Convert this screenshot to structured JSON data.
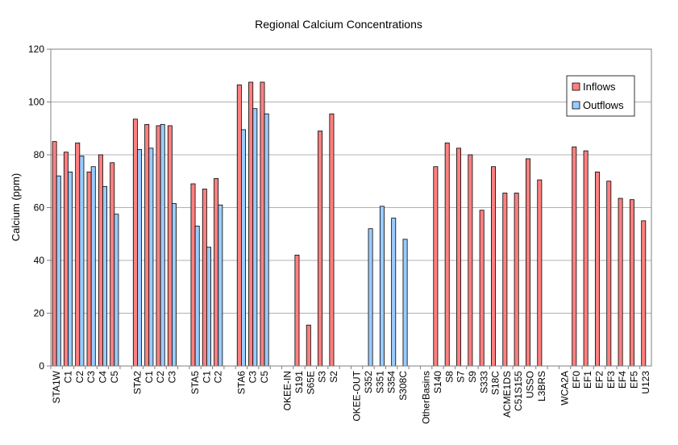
{
  "chart_data": {
    "type": "bar",
    "title": "Regional Calcium Concentrations",
    "xlabel": "",
    "ylabel": "Calcium (ppm)",
    "ylim": [
      0,
      120
    ],
    "yticks": [
      0,
      20,
      40,
      60,
      80,
      100,
      120
    ],
    "grid": true,
    "legend_position": "top-right",
    "categories": [
      "STA1W",
      "C1",
      "C2",
      "C3",
      "C4",
      "C5",
      "",
      "STA2",
      "C1",
      "C2",
      "C3",
      "",
      "STA5",
      "C1",
      "C2",
      "",
      "STA6",
      "C3",
      "C5",
      "",
      "OKEE-IN",
      "S191",
      "S65E",
      "S3",
      "S2",
      "",
      "OKEE-OUT",
      "S352",
      "S351",
      "S354",
      "S308C",
      "",
      "OtherBasins",
      "S140",
      "S8",
      "S7",
      "S9",
      "S333",
      "S18C",
      "ACME1DS",
      "C51S155",
      "USSO",
      "L3BRS",
      "",
      "WCA2A",
      "EF0",
      "EF1",
      "EF2",
      "EF3",
      "EF4",
      "EF5",
      "U123"
    ],
    "series": [
      {
        "name": "Inflows",
        "color": "#ff8080",
        "values": [
          85,
          81,
          84.5,
          73.5,
          80,
          77,
          null,
          93.5,
          91.5,
          91,
          91,
          null,
          69,
          67,
          71,
          null,
          106.5,
          107.5,
          107.5,
          null,
          null,
          42,
          15.5,
          89,
          95.5,
          null,
          null,
          null,
          null,
          null,
          null,
          null,
          null,
          75.5,
          84.5,
          82.5,
          80,
          59,
          75.5,
          65.5,
          65.5,
          78.5,
          70.5,
          null,
          null,
          83,
          81.5,
          73.5,
          70,
          63.5,
          63,
          55
        ]
      },
      {
        "name": "Outflows",
        "color": "#99ccff",
        "values": [
          72,
          73.5,
          79.5,
          75.5,
          68,
          57.5,
          null,
          82,
          82.5,
          91.5,
          61.5,
          null,
          53,
          45,
          61,
          null,
          89.5,
          97.5,
          95.5,
          null,
          null,
          null,
          null,
          null,
          null,
          null,
          null,
          52,
          60.5,
          56,
          48,
          null,
          null,
          null,
          null,
          null,
          null,
          null,
          null,
          null,
          null,
          null,
          null,
          null,
          null,
          null,
          null,
          null,
          null,
          null,
          null,
          null
        ]
      }
    ]
  }
}
